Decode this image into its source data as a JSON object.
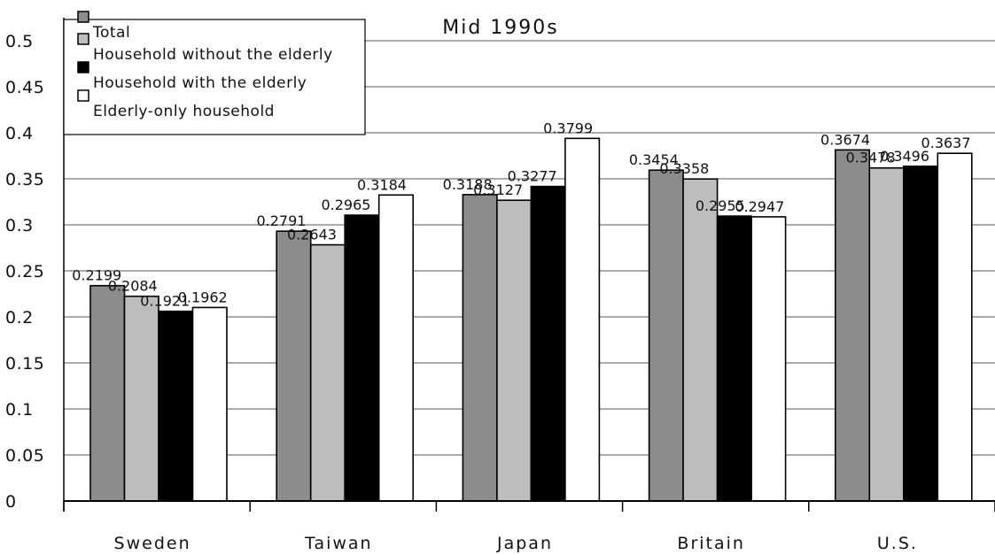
{
  "chart_data": {
    "type": "bar",
    "title": "Mid 1990s",
    "xlabel": "",
    "ylabel": "",
    "ylim": [
      0,
      0.5
    ],
    "yticks": [
      0,
      0.05,
      0.1,
      0.15,
      0.2,
      0.25,
      0.3,
      0.35,
      0.4,
      0.45,
      0.5
    ],
    "ytick_labels": [
      "0",
      "0.05",
      "0.1",
      "0.15",
      "0.2",
      "0.25",
      "0.3",
      "0.35",
      "0.4",
      "0.45",
      "0.5"
    ],
    "grid": true,
    "legend_position": "top-left",
    "categories": [
      "Sweden",
      "Taiwan",
      "Japan",
      "Britain",
      "U.S."
    ],
    "series": [
      {
        "name": "Total",
        "color": "#8c8c8c",
        "values": [
          0.2199,
          0.2791,
          0.3188,
          0.3454,
          0.3674
        ],
        "labels": [
          "0.2199",
          "0.2791",
          "0.3188",
          "0.3454",
          "0.3674"
        ]
      },
      {
        "name": "Household without the elderly",
        "color": "#bdbdbd",
        "values": [
          0.2084,
          0.2643,
          0.3127,
          0.3358,
          0.3478
        ],
        "labels": [
          "0.2084",
          "0.2643",
          "0.3127",
          "0.3358",
          "0.3478"
        ]
      },
      {
        "name": "Household with the elderly",
        "color": "#000000",
        "values": [
          0.1921,
          0.2965,
          0.3277,
          0.2955,
          0.3496
        ],
        "labels": [
          "0.1921",
          "0.2965",
          "0.3277",
          "0.2955",
          "0.3496"
        ]
      },
      {
        "name": "Elderly-only household",
        "color": "#ffffff",
        "values": [
          0.1962,
          0.3184,
          0.3799,
          0.2947,
          0.3637
        ],
        "labels": [
          "0.1962",
          "0.3184",
          "0.3799",
          "0.2947",
          "0.3637"
        ]
      }
    ]
  }
}
